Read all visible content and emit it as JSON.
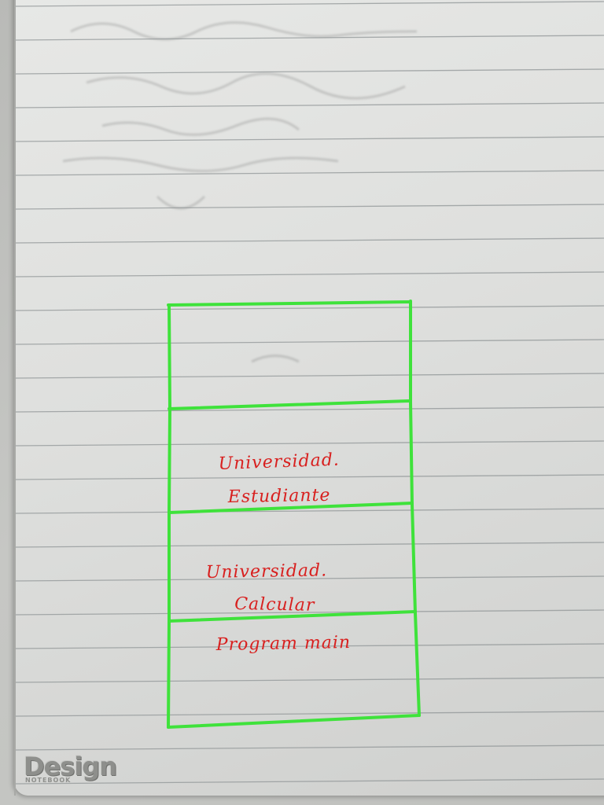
{
  "scene": {
    "subject": "notebook-page",
    "ink_colors": {
      "box_lines": "#3fe23b",
      "handwriting": "#d8201f",
      "ruled_lines": "#8f9496"
    }
  },
  "diagram": {
    "sections": [
      {
        "lines": []
      },
      {
        "lines": [
          "Universidad.",
          "Estudiante"
        ]
      },
      {
        "lines": [
          "Universidad.",
          "Calcular"
        ]
      },
      {
        "lines": [
          "Program main"
        ]
      }
    ]
  },
  "logo": {
    "word": "Design",
    "sub": "NOTEBOOK"
  }
}
